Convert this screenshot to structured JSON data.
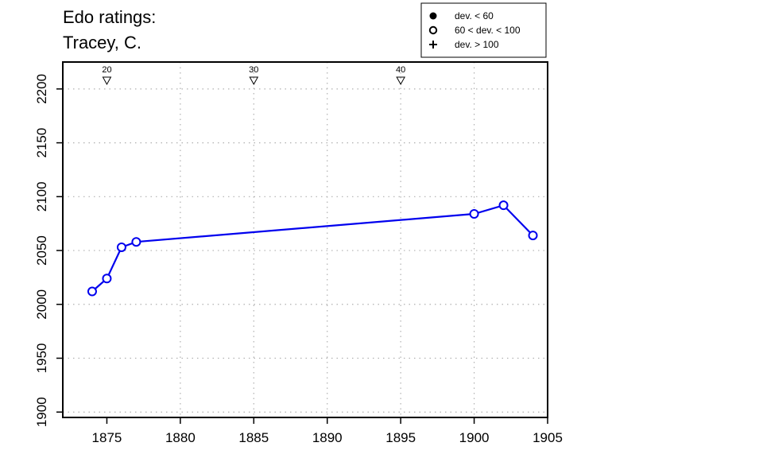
{
  "chart_data": {
    "type": "line",
    "title_line1": "Edo ratings:",
    "title_line2": "Tracey, C.",
    "xlabel": "",
    "ylabel": "",
    "xlim": [
      1872,
      1905
    ],
    "ylim": [
      1895,
      2225
    ],
    "x_ticks": [
      1875,
      1880,
      1885,
      1890,
      1895,
      1900,
      1905
    ],
    "y_ticks": [
      1900,
      1950,
      2000,
      2050,
      2100,
      2150,
      2200
    ],
    "x_tick_labels": [
      "1875",
      "1880",
      "1885",
      "1890",
      "1895",
      "1900",
      "1905"
    ],
    "y_tick_labels": [
      "1900",
      "1950",
      "2000",
      "2050",
      "2100",
      "2150",
      "2200"
    ],
    "grid": true,
    "series": [
      {
        "color": "#0000ee",
        "marker": "open-circle",
        "points": [
          {
            "x": 1874,
            "y": 2012
          },
          {
            "x": 1875,
            "y": 2024
          },
          {
            "x": 1876,
            "y": 2053
          },
          {
            "x": 1877,
            "y": 2058
          },
          {
            "x": 1900,
            "y": 2084
          },
          {
            "x": 1902,
            "y": 2092
          },
          {
            "x": 1904,
            "y": 2064
          }
        ]
      }
    ],
    "age_markers": [
      {
        "x": 1875,
        "label": "20"
      },
      {
        "x": 1885,
        "label": "30"
      },
      {
        "x": 1895,
        "label": "40"
      }
    ],
    "legend": {
      "placement": "top-right",
      "entries": [
        {
          "symbol": "filled-circle",
          "label": "dev. < 60"
        },
        {
          "symbol": "open-circle",
          "label": "60 < dev. < 100"
        },
        {
          "symbol": "plus",
          "label": "dev. > 100"
        }
      ]
    }
  }
}
